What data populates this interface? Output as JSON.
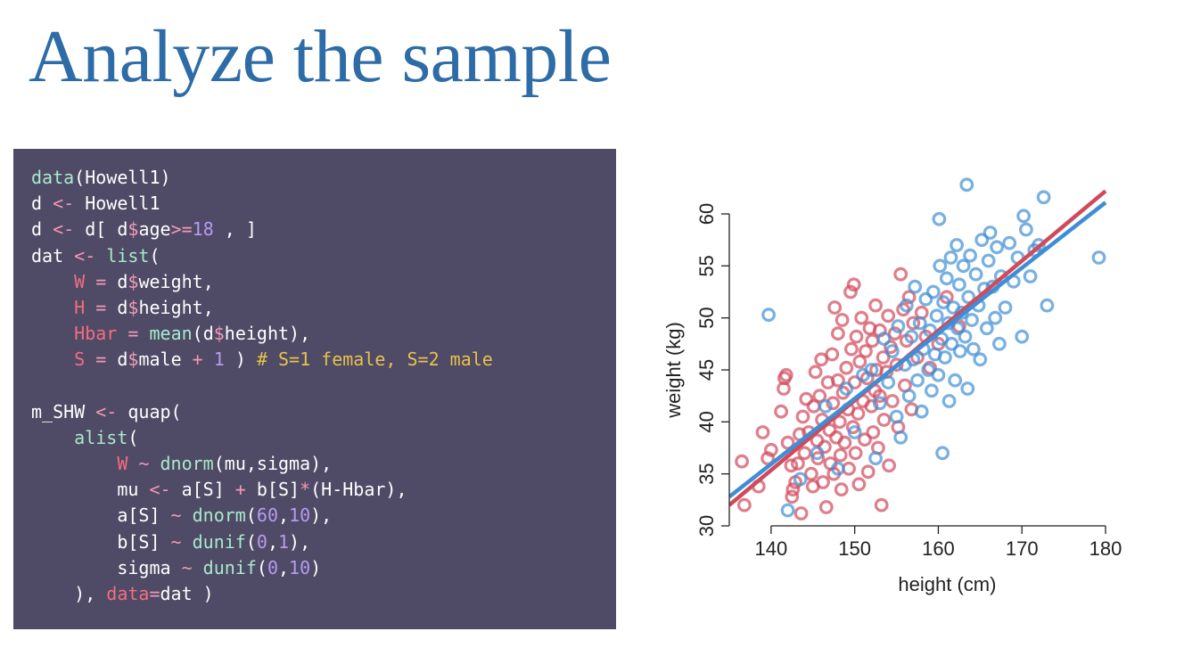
{
  "slide": {
    "title": "Analyze the sample"
  },
  "code": {
    "lines": [
      [
        {
          "t": "data",
          "c": "func"
        },
        {
          "t": "(Howell1)",
          "c": "plain"
        }
      ],
      [
        {
          "t": "d ",
          "c": "plain"
        },
        {
          "t": "<-",
          "c": "op"
        },
        {
          "t": " Howell1",
          "c": "plain"
        }
      ],
      [
        {
          "t": "d ",
          "c": "plain"
        },
        {
          "t": "<-",
          "c": "op"
        },
        {
          "t": " d[ d",
          "c": "plain"
        },
        {
          "t": "$",
          "c": "op"
        },
        {
          "t": "age",
          "c": "plain"
        },
        {
          "t": ">=",
          "c": "op"
        },
        {
          "t": "18",
          "c": "num"
        },
        {
          "t": " , ]",
          "c": "plain"
        }
      ],
      [
        {
          "t": "dat ",
          "c": "plain"
        },
        {
          "t": "<-",
          "c": "op"
        },
        {
          "t": " ",
          "c": "plain"
        },
        {
          "t": "list",
          "c": "func"
        },
        {
          "t": "(",
          "c": "plain"
        }
      ],
      [
        {
          "t": "    ",
          "c": "plain"
        },
        {
          "t": "W",
          "c": "var"
        },
        {
          "t": " ",
          "c": "plain"
        },
        {
          "t": "=",
          "c": "op"
        },
        {
          "t": " d",
          "c": "plain"
        },
        {
          "t": "$",
          "c": "op"
        },
        {
          "t": "weight,",
          "c": "plain"
        }
      ],
      [
        {
          "t": "    ",
          "c": "plain"
        },
        {
          "t": "H",
          "c": "var"
        },
        {
          "t": " ",
          "c": "plain"
        },
        {
          "t": "=",
          "c": "op"
        },
        {
          "t": " d",
          "c": "plain"
        },
        {
          "t": "$",
          "c": "op"
        },
        {
          "t": "height,",
          "c": "plain"
        }
      ],
      [
        {
          "t": "    ",
          "c": "plain"
        },
        {
          "t": "Hbar",
          "c": "var"
        },
        {
          "t": " ",
          "c": "plain"
        },
        {
          "t": "=",
          "c": "op"
        },
        {
          "t": " ",
          "c": "plain"
        },
        {
          "t": "mean",
          "c": "func"
        },
        {
          "t": "(d",
          "c": "plain"
        },
        {
          "t": "$",
          "c": "op"
        },
        {
          "t": "height),",
          "c": "plain"
        }
      ],
      [
        {
          "t": "    ",
          "c": "plain"
        },
        {
          "t": "S",
          "c": "var"
        },
        {
          "t": " ",
          "c": "plain"
        },
        {
          "t": "=",
          "c": "op"
        },
        {
          "t": " d",
          "c": "plain"
        },
        {
          "t": "$",
          "c": "op"
        },
        {
          "t": "male ",
          "c": "plain"
        },
        {
          "t": "+",
          "c": "op"
        },
        {
          "t": " ",
          "c": "plain"
        },
        {
          "t": "1",
          "c": "num"
        },
        {
          "t": " ) ",
          "c": "plain"
        },
        {
          "t": "# S=1 female, S=2 male",
          "c": "comment"
        }
      ],
      [],
      [
        {
          "t": "m_SHW ",
          "c": "plain"
        },
        {
          "t": "<-",
          "c": "op"
        },
        {
          "t": " quap(",
          "c": "plain"
        }
      ],
      [
        {
          "t": "    ",
          "c": "plain"
        },
        {
          "t": "alist",
          "c": "func"
        },
        {
          "t": "(",
          "c": "plain"
        }
      ],
      [
        {
          "t": "        ",
          "c": "plain"
        },
        {
          "t": "W",
          "c": "var"
        },
        {
          "t": " ",
          "c": "plain"
        },
        {
          "t": "~",
          "c": "op"
        },
        {
          "t": " ",
          "c": "plain"
        },
        {
          "t": "dnorm",
          "c": "func"
        },
        {
          "t": "(mu,sigma),",
          "c": "plain"
        }
      ],
      [
        {
          "t": "        mu ",
          "c": "plain"
        },
        {
          "t": "<-",
          "c": "op"
        },
        {
          "t": " a[S] ",
          "c": "plain"
        },
        {
          "t": "+",
          "c": "op"
        },
        {
          "t": " b[S]",
          "c": "plain"
        },
        {
          "t": "*",
          "c": "op"
        },
        {
          "t": "(H-Hbar),",
          "c": "plain"
        }
      ],
      [
        {
          "t": "        a[S] ",
          "c": "plain"
        },
        {
          "t": "~",
          "c": "op"
        },
        {
          "t": " ",
          "c": "plain"
        },
        {
          "t": "dnorm",
          "c": "func"
        },
        {
          "t": "(",
          "c": "plain"
        },
        {
          "t": "60",
          "c": "num"
        },
        {
          "t": ",",
          "c": "plain"
        },
        {
          "t": "10",
          "c": "num"
        },
        {
          "t": "),",
          "c": "plain"
        }
      ],
      [
        {
          "t": "        b[S] ",
          "c": "plain"
        },
        {
          "t": "~",
          "c": "op"
        },
        {
          "t": " ",
          "c": "plain"
        },
        {
          "t": "dunif",
          "c": "func"
        },
        {
          "t": "(",
          "c": "plain"
        },
        {
          "t": "0",
          "c": "num"
        },
        {
          "t": ",",
          "c": "plain"
        },
        {
          "t": "1",
          "c": "num"
        },
        {
          "t": "),",
          "c": "plain"
        }
      ],
      [
        {
          "t": "        sigma ",
          "c": "plain"
        },
        {
          "t": "~",
          "c": "op"
        },
        {
          "t": " ",
          "c": "plain"
        },
        {
          "t": "dunif",
          "c": "func"
        },
        {
          "t": "(",
          "c": "plain"
        },
        {
          "t": "0",
          "c": "num"
        },
        {
          "t": ",",
          "c": "plain"
        },
        {
          "t": "10",
          "c": "num"
        },
        {
          "t": ")",
          "c": "plain"
        }
      ],
      [
        {
          "t": "    ), ",
          "c": "plain"
        },
        {
          "t": "data",
          "c": "var"
        },
        {
          "t": "=",
          "c": "op"
        },
        {
          "t": "dat )",
          "c": "plain"
        }
      ]
    ]
  },
  "chart_data": {
    "type": "scatter",
    "xlabel": "height (cm)",
    "ylabel": "weight (kg)",
    "xlim": [
      135,
      180
    ],
    "ylim": [
      30,
      62
    ],
    "xticks": [
      "140",
      "150",
      "160",
      "170",
      "180"
    ],
    "yticks": [
      "30",
      "35",
      "40",
      "45",
      "50",
      "55",
      "60"
    ],
    "grid": false,
    "legend": "none",
    "colors": {
      "red": "#d1495b",
      "blue": "#3e8ed6"
    },
    "series": [
      {
        "color": "red",
        "points": [
          [
            136.5,
            36.2
          ],
          [
            136.8,
            32.0
          ],
          [
            138.5,
            33.8
          ],
          [
            139.0,
            39.0
          ],
          [
            139.6,
            36.5
          ],
          [
            140.0,
            37.3
          ],
          [
            141.2,
            41.0
          ],
          [
            141.6,
            44.2
          ],
          [
            141.8,
            44.5
          ],
          [
            141.5,
            43.2
          ],
          [
            142.0,
            38.0
          ],
          [
            142.4,
            35.8
          ],
          [
            142.5,
            32.8
          ],
          [
            142.6,
            33.5
          ],
          [
            142.9,
            34.2
          ],
          [
            143.2,
            36.0
          ],
          [
            143.4,
            38.8
          ],
          [
            143.6,
            31.2
          ],
          [
            143.8,
            40.5
          ],
          [
            144.0,
            37.0
          ],
          [
            144.2,
            42.2
          ],
          [
            144.5,
            39.0
          ],
          [
            144.8,
            35.0
          ],
          [
            145.0,
            33.8
          ],
          [
            145.1,
            41.5
          ],
          [
            145.3,
            44.8
          ],
          [
            145.5,
            38.2
          ],
          [
            145.6,
            36.5
          ],
          [
            145.8,
            42.5
          ],
          [
            146.0,
            46.0
          ],
          [
            146.1,
            40.2
          ],
          [
            146.2,
            34.2
          ],
          [
            146.4,
            37.6
          ],
          [
            146.6,
            31.8
          ],
          [
            146.8,
            43.8
          ],
          [
            147.0,
            39.2
          ],
          [
            147.1,
            36.0
          ],
          [
            147.3,
            46.5
          ],
          [
            147.4,
            41.8
          ],
          [
            147.5,
            35.0
          ],
          [
            147.6,
            51.0
          ],
          [
            147.8,
            38.5
          ],
          [
            148.0,
            44.0
          ],
          [
            148.0,
            48.5
          ],
          [
            148.2,
            40.0
          ],
          [
            148.3,
            36.8
          ],
          [
            148.4,
            33.5
          ],
          [
            148.5,
            49.8
          ],
          [
            148.6,
            42.8
          ],
          [
            148.8,
            38.0
          ],
          [
            149.0,
            45.2
          ],
          [
            149.2,
            41.2
          ],
          [
            149.3,
            35.5
          ],
          [
            149.5,
            52.5
          ],
          [
            149.6,
            47.0
          ],
          [
            149.8,
            39.5
          ],
          [
            149.9,
            53.2
          ],
          [
            150.0,
            43.8
          ],
          [
            150.1,
            37.0
          ],
          [
            150.2,
            48.2
          ],
          [
            150.4,
            40.8
          ],
          [
            150.5,
            34.0
          ],
          [
            150.6,
            45.8
          ],
          [
            150.8,
            50.0
          ],
          [
            151.0,
            42.0
          ],
          [
            151.2,
            38.3
          ],
          [
            151.3,
            46.8
          ],
          [
            151.5,
            44.2
          ],
          [
            151.6,
            35.2
          ],
          [
            151.8,
            49.0
          ],
          [
            152.0,
            41.5
          ],
          [
            152.1,
            47.8
          ],
          [
            152.2,
            39.0
          ],
          [
            152.4,
            43.0
          ],
          [
            152.5,
            51.2
          ],
          [
            152.6,
            45.0
          ],
          [
            152.8,
            37.5
          ],
          [
            153.0,
            48.8
          ],
          [
            153.0,
            42.5
          ],
          [
            153.2,
            32.0
          ],
          [
            153.4,
            46.2
          ],
          [
            153.5,
            40.2
          ],
          [
            153.8,
            44.8
          ],
          [
            154.0,
            50.2
          ],
          [
            154.1,
            35.8
          ],
          [
            154.3,
            47.2
          ],
          [
            154.5,
            42.0
          ],
          [
            154.8,
            48.5
          ],
          [
            155.0,
            45.5
          ],
          [
            155.2,
            39.5
          ],
          [
            155.5,
            54.2
          ],
          [
            155.8,
            50.8
          ],
          [
            156.0,
            43.5
          ],
          [
            156.2,
            47.8
          ],
          [
            156.5,
            52.0
          ],
          [
            156.8,
            41.2
          ],
          [
            157.0,
            49.5
          ],
          [
            157.5,
            46.2
          ],
          [
            158.0,
            50.5
          ],
          [
            158.5,
            48.2
          ],
          [
            159.0,
            45.2
          ],
          [
            160.0,
            47.5
          ],
          [
            161.0,
            52.0
          ],
          [
            162.5,
            49.2
          ]
        ]
      },
      {
        "color": "blue",
        "points": [
          [
            139.7,
            50.3
          ],
          [
            142.0,
            31.5
          ],
          [
            143.5,
            34.5
          ],
          [
            145.5,
            37.0
          ],
          [
            146.5,
            41.5
          ],
          [
            148.0,
            35.5
          ],
          [
            149.0,
            43.2
          ],
          [
            150.0,
            39.0
          ],
          [
            151.0,
            44.5
          ],
          [
            152.0,
            45.0
          ],
          [
            152.5,
            36.5
          ],
          [
            153.0,
            41.8
          ],
          [
            153.5,
            48.0
          ],
          [
            154.0,
            43.8
          ],
          [
            154.5,
            46.8
          ],
          [
            155.0,
            40.5
          ],
          [
            155.2,
            49.2
          ],
          [
            155.5,
            38.5
          ],
          [
            156.0,
            45.5
          ],
          [
            156.2,
            51.2
          ],
          [
            156.5,
            42.5
          ],
          [
            156.8,
            48.2
          ],
          [
            157.0,
            46.0
          ],
          [
            157.2,
            53.0
          ],
          [
            157.5,
            44.0
          ],
          [
            157.8,
            49.5
          ],
          [
            158.0,
            41.0
          ],
          [
            158.2,
            47.0
          ],
          [
            158.5,
            51.8
          ],
          [
            158.8,
            45.0
          ],
          [
            159.0,
            48.8
          ],
          [
            159.2,
            43.0
          ],
          [
            159.4,
            52.5
          ],
          [
            159.6,
            46.5
          ],
          [
            159.8,
            50.2
          ],
          [
            160.0,
            44.5
          ],
          [
            160.1,
            59.5
          ],
          [
            160.2,
            55.0
          ],
          [
            160.4,
            48.0
          ],
          [
            160.5,
            37.0
          ],
          [
            160.6,
            51.5
          ],
          [
            160.8,
            46.2
          ],
          [
            161.0,
            53.8
          ],
          [
            161.2,
            49.5
          ],
          [
            161.3,
            42.0
          ],
          [
            161.5,
            55.8
          ],
          [
            161.6,
            47.5
          ],
          [
            161.8,
            51.0
          ],
          [
            162.0,
            44.0
          ],
          [
            162.2,
            57.0
          ],
          [
            162.3,
            49.0
          ],
          [
            162.5,
            53.2
          ],
          [
            162.6,
            46.8
          ],
          [
            162.8,
            50.5
          ],
          [
            163.0,
            55.0
          ],
          [
            163.2,
            48.2
          ],
          [
            163.4,
            62.8
          ],
          [
            163.5,
            43.2
          ],
          [
            163.6,
            52.0
          ],
          [
            163.8,
            56.0
          ],
          [
            164.0,
            49.8
          ],
          [
            164.2,
            47.0
          ],
          [
            164.5,
            54.2
          ],
          [
            164.8,
            51.2
          ],
          [
            165.0,
            46.0
          ],
          [
            165.2,
            57.5
          ],
          [
            165.5,
            52.8
          ],
          [
            165.8,
            49.0
          ],
          [
            166.0,
            55.5
          ],
          [
            166.2,
            58.2
          ],
          [
            166.5,
            53.0
          ],
          [
            166.8,
            50.0
          ],
          [
            167.0,
            56.8
          ],
          [
            167.3,
            47.5
          ],
          [
            167.5,
            54.0
          ],
          [
            168.0,
            51.0
          ],
          [
            168.5,
            57.2
          ],
          [
            169.0,
            53.5
          ],
          [
            169.5,
            55.8
          ],
          [
            170.0,
            48.2
          ],
          [
            170.2,
            59.8
          ],
          [
            170.5,
            58.5
          ],
          [
            171.0,
            54.0
          ],
          [
            171.5,
            56.5
          ],
          [
            172.0,
            57.0
          ],
          [
            172.6,
            61.6
          ],
          [
            173.0,
            51.2
          ],
          [
            179.2,
            55.8
          ]
        ]
      }
    ],
    "lines": [
      {
        "color": "red",
        "x": [
          135,
          180
        ],
        "y": [
          32.0,
          62.2
        ]
      },
      {
        "color": "blue",
        "x": [
          135,
          180
        ],
        "y": [
          32.8,
          61.1
        ]
      }
    ]
  }
}
